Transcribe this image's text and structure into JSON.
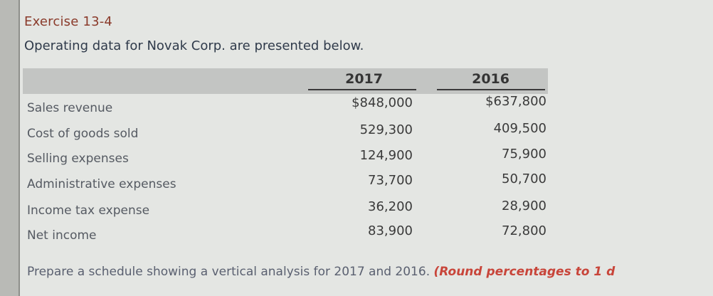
{
  "exercise": {
    "title": "Exercise 13-4",
    "intro": "Operating data for Novak Corp. are presented below."
  },
  "table": {
    "columns": [
      "2017",
      "2016"
    ],
    "rows": [
      {
        "label": "Sales revenue",
        "v2017": "$848,000",
        "v2016": "$637,800"
      },
      {
        "label": "Cost of goods sold",
        "v2017": "529,300",
        "v2016": "409,500"
      },
      {
        "label": "Selling expenses",
        "v2017": "124,900",
        "v2016": "75,900"
      },
      {
        "label": "Administrative expenses",
        "v2017": "73,700",
        "v2016": "50,700"
      },
      {
        "label": "Income tax expense",
        "v2017": "36,200",
        "v2016": "28,900"
      },
      {
        "label": "Net income",
        "v2017": "83,900",
        "v2016": "72,800"
      }
    ]
  },
  "instruction": {
    "text": "Prepare a schedule showing a vertical analysis for 2017 and 2016. ",
    "emphasis": "(Round percentages to 1 d"
  },
  "colors": {
    "title": "#8a3a2a",
    "emphasis": "#c8453a",
    "header_bar": "#c3c5c3"
  }
}
